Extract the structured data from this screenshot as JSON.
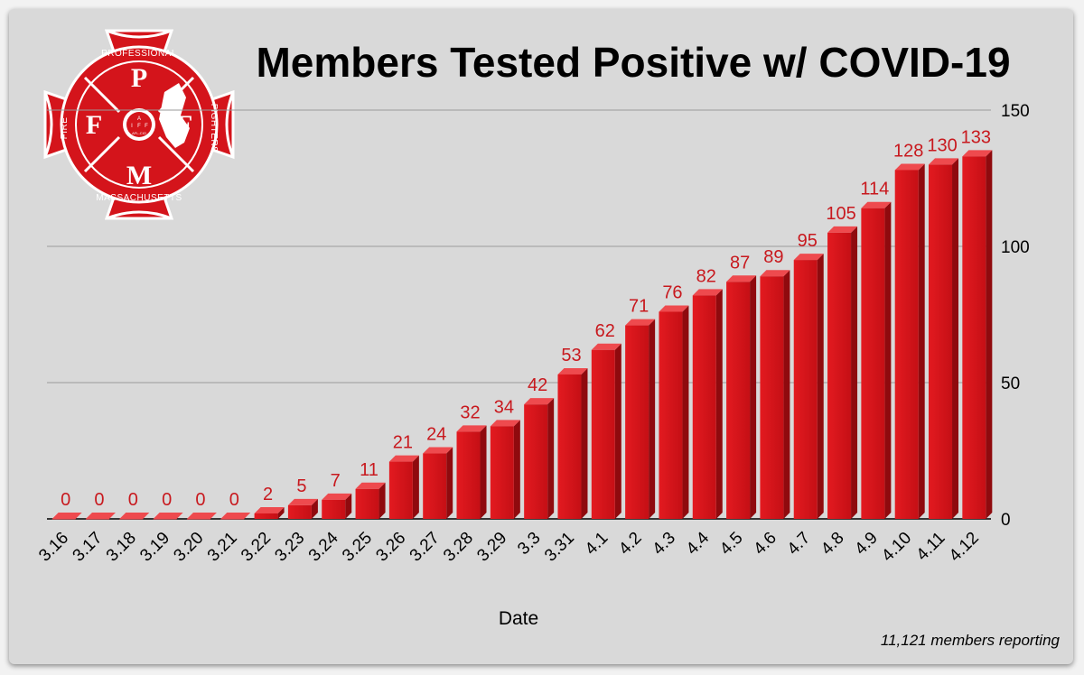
{
  "logo": {
    "top_arc": "PROFESSIONAL",
    "bottom_arc": "MASSACHUSETTS",
    "left_arc": "FIRE",
    "right_arc": "FIGHTERS",
    "letters": {
      "top": "P",
      "left": "F",
      "right": "F",
      "bottom": "M"
    },
    "seal_text": [
      "A",
      "I",
      "F",
      "F",
      "AFL-CIO"
    ],
    "colors": {
      "red": "#d4141b",
      "white": "#ffffff"
    }
  },
  "chart_data": {
    "type": "bar",
    "title": "Members Tested Positive w/ COVID-19",
    "xlabel": "Date",
    "ylabel": "",
    "ylim": [
      0,
      150
    ],
    "yticks": [
      0,
      50,
      100,
      150
    ],
    "y_axis_side": "right",
    "grid": true,
    "bar_color": "#d4141b",
    "label_color": "#c8191e",
    "categories": [
      "3.16",
      "3.17",
      "3.18",
      "3.19",
      "3.20",
      "3.21",
      "3.22",
      "3.23",
      "3.24",
      "3.25",
      "3.26",
      "3.27",
      "3.28",
      "3.29",
      "3.3",
      "3.31",
      "4.1",
      "4.2",
      "4.3",
      "4.4",
      "4.5",
      "4.6",
      "4.7",
      "4.8",
      "4.9",
      "4.10",
      "4.11",
      "4.12"
    ],
    "values": [
      0,
      0,
      0,
      0,
      0,
      0,
      2,
      5,
      7,
      11,
      21,
      24,
      32,
      34,
      42,
      53,
      62,
      71,
      76,
      82,
      87,
      89,
      95,
      105,
      114,
      128,
      130,
      133
    ],
    "annotation": "11,121 members reporting"
  }
}
